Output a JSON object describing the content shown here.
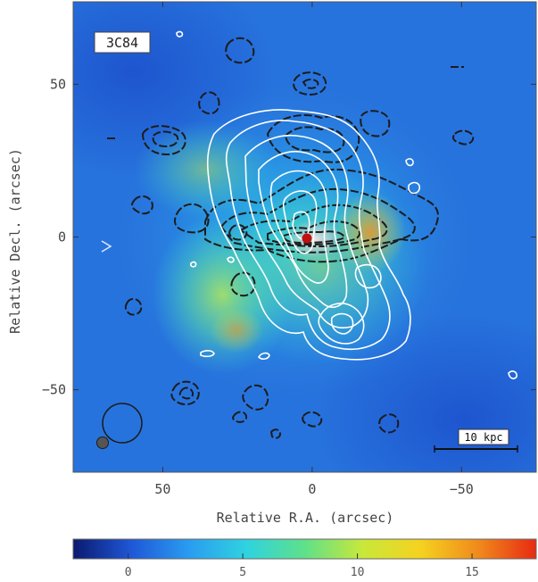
{
  "source_label": "3C84",
  "scale_bar_label": "10 kpc",
  "x_axis": {
    "title": "Relative R.A. (arcsec)",
    "ticks": [
      {
        "value": 50,
        "label": "50"
      },
      {
        "value": 0,
        "label": "0"
      },
      {
        "value": -50,
        "label": "−50"
      }
    ],
    "range": [
      80,
      -75
    ]
  },
  "y_axis": {
    "title": "Relative Decl. (arcsec)",
    "ticks": [
      {
        "value": 50,
        "label": "50"
      },
      {
        "value": 0,
        "label": "0"
      },
      {
        "value": -50,
        "label": "−50"
      }
    ],
    "range": [
      -77,
      77
    ]
  },
  "colorbar": {
    "ticks": [
      {
        "value": 0,
        "label": "0"
      },
      {
        "value": 5,
        "label": "5"
      },
      {
        "value": 10,
        "label": "10"
      },
      {
        "value": 15,
        "label": "15"
      }
    ],
    "range": [
      -2.4,
      17.8
    ],
    "colormap": [
      "#0a1a6e",
      "#1f57d6",
      "#2a9cf0",
      "#2fd3e0",
      "#5fe08a",
      "#c8e83a",
      "#f5d21f",
      "#f08a1c",
      "#e82a12"
    ]
  },
  "colors": {
    "black_contours": "#1c1c1c",
    "white_contours": "#ffffff",
    "core_marker": "#c01010",
    "beam_marker": "#555555"
  }
}
